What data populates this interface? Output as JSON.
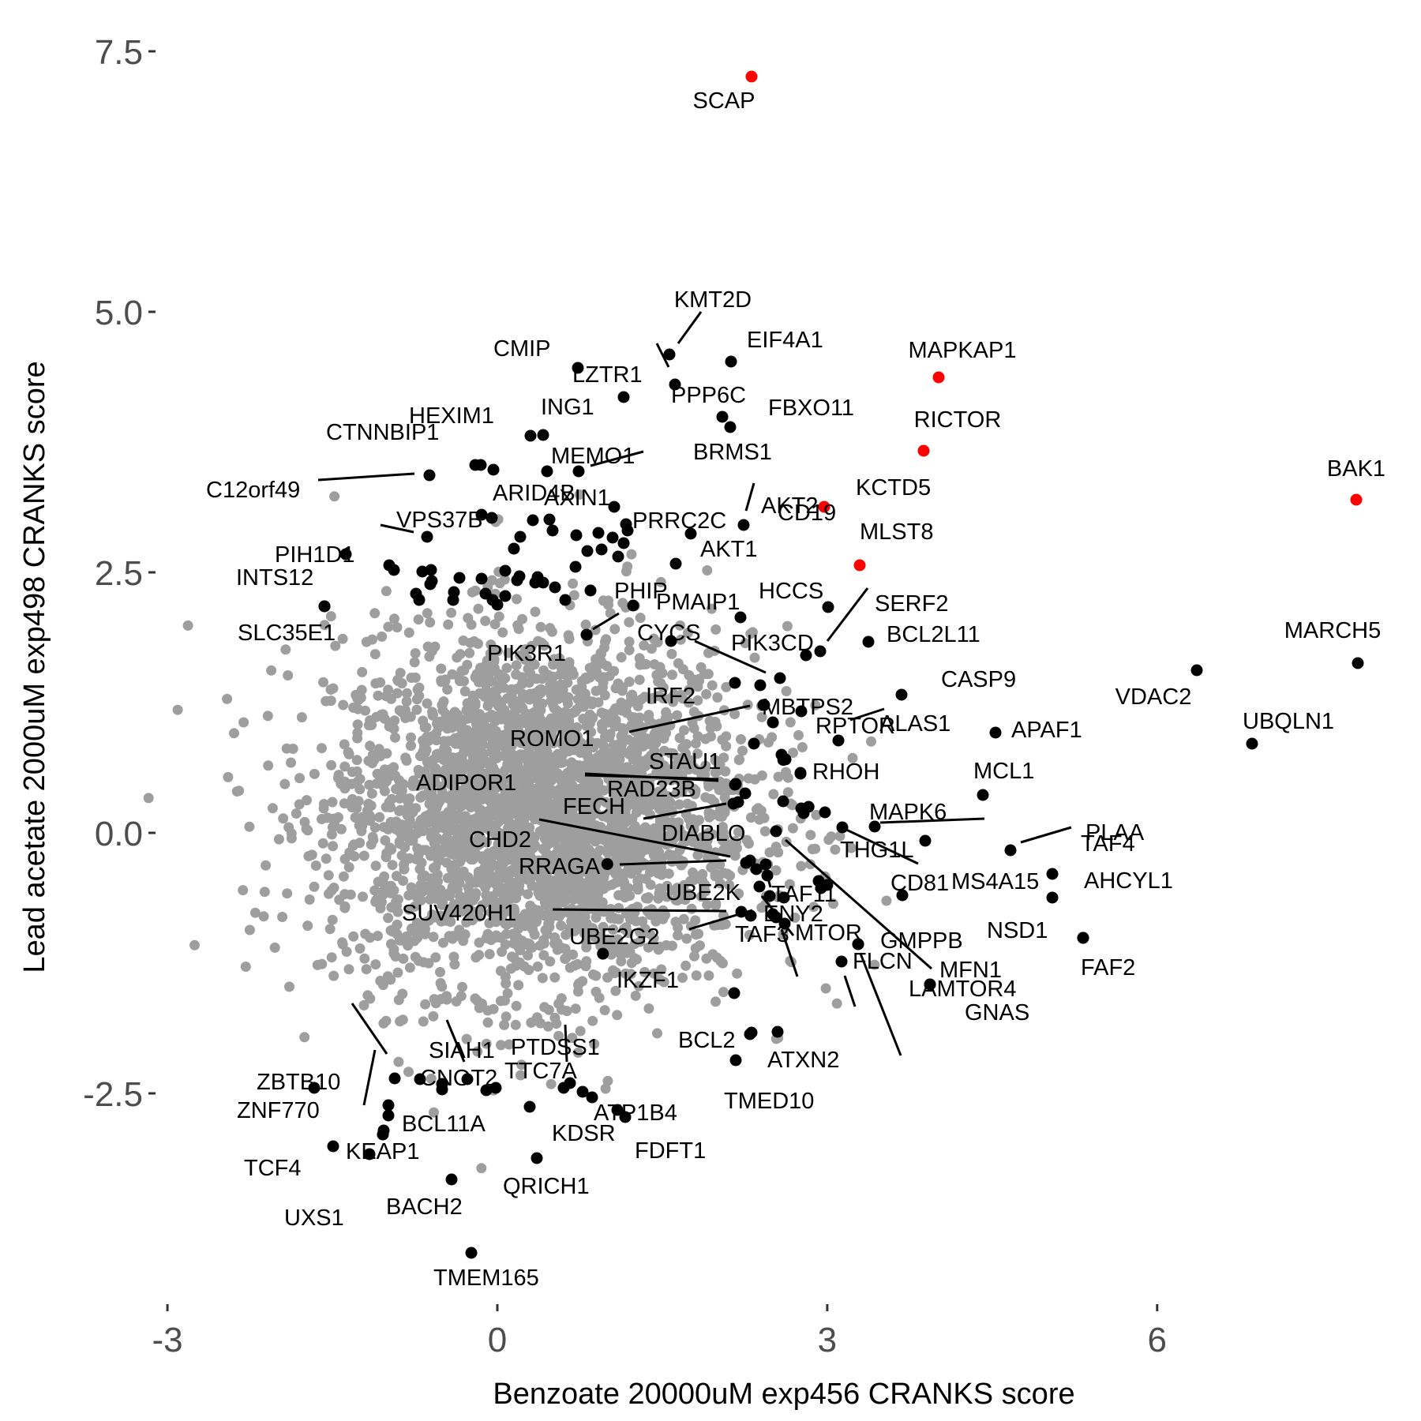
{
  "chart_data": {
    "type": "scatter",
    "title": "",
    "xlabel": "Benzoate 20000uM exp456 CRANKS score",
    "ylabel": "Lead acetate 2000uM exp498 CRANKS score",
    "xlim": [
      -3,
      8.2
    ],
    "ylim": [
      -4.5,
      7.75
    ],
    "x_ticks": [
      -3,
      0,
      3,
      6
    ],
    "x_tick_labels": [
      "-3",
      "0",
      "3",
      "6"
    ],
    "y_ticks": [
      -2.5,
      0.0,
      2.5,
      5.0,
      7.5
    ],
    "y_tick_labels": [
      "-2.5",
      "0.0",
      "2.5",
      "5.0",
      "7.5"
    ],
    "grid": false,
    "legend": "none",
    "colors": {
      "background_points": "#9e9e9e",
      "labeled_points": "#000000",
      "highlight_points": "#ff0000"
    },
    "background_cloud": {
      "description_center_x": 0.4,
      "description_center_y": 0.2,
      "count": 3200,
      "x_sd": 0.95,
      "y_sd": 0.85
    },
    "labeled_points": [
      {
        "gene": "SCAP",
        "x": 2.33,
        "y": 7.24,
        "color": "#ff0000"
      },
      {
        "gene": "KMT2D",
        "x": 1.6,
        "y": 4.54
      },
      {
        "gene": "EIF4A1",
        "x": 2.15,
        "y": 4.5
      },
      {
        "gene": "CMIP",
        "x": 0.74,
        "y": 4.43
      },
      {
        "gene": "LZTR1",
        "x": 1.55,
        "y": 4.28
      },
      {
        "gene": "MAPKAP1",
        "x": 4.05,
        "y": 4.34,
        "color": "#ff0000"
      },
      {
        "gene": "ING1",
        "x": 1.17,
        "y": 4.15
      },
      {
        "gene": "PPP6C",
        "x": 2.07,
        "y": 3.95
      },
      {
        "gene": "HEXIM1",
        "x": 0.43,
        "y": 3.8
      },
      {
        "gene": "FBXO11",
        "x": 2.15,
        "y": 3.85
      },
      {
        "gene": "RICTOR",
        "x": 3.9,
        "y": 3.64,
        "color": "#ff0000"
      },
      {
        "gene": "CTNNBIP1",
        "x": -0.16,
        "y": 3.5
      },
      {
        "gene": "MEMO1",
        "x": 0.45,
        "y": 3.47
      },
      {
        "gene": "BRMS1",
        "x": 0.76,
        "y": 3.46
      },
      {
        "gene": "C12orf49",
        "x": -0.62,
        "y": 3.42
      },
      {
        "gene": "BAK1",
        "x": 7.85,
        "y": 3.18,
        "color": "#ff0000"
      },
      {
        "gene": "AKT2",
        "x": 2.25,
        "y": 2.95
      },
      {
        "gene": "KCTD5",
        "x": 3.0,
        "y": 3.15,
        "color": "#ff0000"
      },
      {
        "gene": "ARID4B",
        "x": 0.32,
        "y": 3.0
      },
      {
        "gene": "AXIN1",
        "x": 1.07,
        "y": 3.13
      },
      {
        "gene": "PRRC2C",
        "x": 1.49,
        "y": 2.85
      },
      {
        "gene": "VPS37B",
        "x": -0.64,
        "y": 2.82
      },
      {
        "gene": "PIH1D1",
        "x": -1.38,
        "y": 2.65
      },
      {
        "gene": "CD19",
        "x": 1.64,
        "y": 2.68
      },
      {
        "gene": "AKT1",
        "x": 1.68,
        "y": 2.53
      },
      {
        "gene": "MLST8",
        "x": 3.3,
        "y": 2.55,
        "color": "#ff0000"
      },
      {
        "gene": "INTS12",
        "x": -1.58,
        "y": 2.17
      },
      {
        "gene": "HCCS",
        "x": 3.02,
        "y": 2.15
      },
      {
        "gene": "SERF2",
        "x": 2.95,
        "y": 1.73
      },
      {
        "gene": "PHIP",
        "x": 1.25,
        "y": 2.17
      },
      {
        "gene": "PMAIP1",
        "x": 2.25,
        "y": 2.04
      },
      {
        "gene": "BCL2L11",
        "x": 3.4,
        "y": 1.83
      },
      {
        "gene": "PIK3R1",
        "x": 0.85,
        "y": 1.95
      },
      {
        "gene": "SLC35E1",
        "x": -1.58,
        "y": 1.9
      },
      {
        "gene": "MARCH5",
        "x": 7.85,
        "y": 1.6
      },
      {
        "gene": "PIK3CD",
        "x": 2.75,
        "y": 1.7
      },
      {
        "gene": "CYCS",
        "x": 2.6,
        "y": 1.45
      },
      {
        "gene": "VDAC2",
        "x": 6.4,
        "y": 1.55
      },
      {
        "gene": "RPTOR",
        "x": 2.8,
        "y": 1.15
      },
      {
        "gene": "CASP9",
        "x": 3.7,
        "y": 1.33
      },
      {
        "gene": "IRF2",
        "x": 2.17,
        "y": 1.4
      },
      {
        "gene": "MBTPS2",
        "x": 2.45,
        "y": 1.22
      },
      {
        "gene": "ROMO1",
        "x": 2.43,
        "y": 1.23
      },
      {
        "gene": "STAU1",
        "x": 2.55,
        "y": 1.07
      },
      {
        "gene": "ALAS1",
        "x": 3.15,
        "y": 0.88
      },
      {
        "gene": "APAF1",
        "x": 4.55,
        "y": 0.95
      },
      {
        "gene": "UBQLN1",
        "x": 6.9,
        "y": 0.85
      },
      {
        "gene": "RHOH",
        "x": 2.78,
        "y": 0.57
      },
      {
        "gene": "MCL1",
        "x": 4.45,
        "y": 0.36
      },
      {
        "gene": "ADIPOR1",
        "x": 1.65,
        "y": 0.53
      },
      {
        "gene": "RAD23B",
        "x": 2.17,
        "y": 0.45
      },
      {
        "gene": "MAPK6",
        "x": 3.45,
        "y": 0.06
      },
      {
        "gene": "TAF4",
        "x": 3.9,
        "y": -0.08
      },
      {
        "gene": "PLAA",
        "x": 4.7,
        "y": -0.17
      },
      {
        "gene": "CHD2",
        "x": 2.25,
        "y": -0.28
      },
      {
        "gene": "FECH",
        "x": 2.13,
        "y": 0.24
      },
      {
        "gene": "DIABLO",
        "x": 2.55,
        "y": 0.02
      },
      {
        "gene": "THG1L",
        "x": 3.2,
        "y": 0.02
      },
      {
        "gene": "CD81",
        "x": 3.7,
        "y": -0.62
      },
      {
        "gene": "MS4A15",
        "x": 5.05,
        "y": -0.37
      },
      {
        "gene": "AHCYL1",
        "x": 5.05,
        "y": -0.63
      },
      {
        "gene": "RRAGA",
        "x": 2.33,
        "y": -0.3
      },
      {
        "gene": "UBE2K",
        "x": 2.4,
        "y": -0.3
      },
      {
        "gene": "ENY2",
        "x": 2.48,
        "y": -0.65
      },
      {
        "gene": "SUV420H1",
        "x": 2.2,
        "y": -0.77
      },
      {
        "gene": "UBE2G2",
        "x": 2.3,
        "y": -0.8
      },
      {
        "gene": "MTOR",
        "x": 2.63,
        "y": -0.86
      },
      {
        "gene": "GMPPB",
        "x": 3.3,
        "y": -1.07
      },
      {
        "gene": "NSD1",
        "x": 5.35,
        "y": -1.0
      },
      {
        "gene": "TAF3",
        "x": 2.5,
        "y": -0.55
      },
      {
        "gene": "MFN1",
        "x": 3.97,
        "y": -1.47
      },
      {
        "gene": "FAF2",
        "x": 5.35,
        "y": -1.0
      },
      {
        "gene": "IKZF1",
        "x": 2.17,
        "y": -1.53
      },
      {
        "gene": "TAF11",
        "x": 2.48,
        "y": -0.7
      },
      {
        "gene": "FLCN",
        "x": 3.15,
        "y": -1.23
      },
      {
        "gene": "GNAS",
        "x": 3.97,
        "y": -1.47
      },
      {
        "gene": "LAMTOR4",
        "x": 3.3,
        "y": -1.07
      },
      {
        "gene": "BCL2",
        "x": 2.4,
        "y": -1.93
      },
      {
        "gene": "ATXN2",
        "x": 2.65,
        "y": -1.9
      },
      {
        "gene": "TMED10",
        "x": 2.17,
        "y": -2.2
      },
      {
        "gene": "ZBTB10",
        "x": -0.92,
        "y": -2.35
      },
      {
        "gene": "SIAH1",
        "x": -0.28,
        "y": -2.4
      },
      {
        "gene": "PTDSS1",
        "x": 0.68,
        "y": -2.5
      },
      {
        "gene": "CNOT2",
        "x": -0.45,
        "y": -2.52
      },
      {
        "gene": "TTC7A",
        "x": 0.42,
        "y": -2.53
      },
      {
        "gene": "ATP1B4",
        "x": 0.88,
        "y": -2.62
      },
      {
        "gene": "ZNF770",
        "x": -1.67,
        "y": -2.5
      },
      {
        "gene": "BCL11A",
        "x": -0.95,
        "y": -2.75
      },
      {
        "gene": "KDSR",
        "x": 1.2,
        "y": -2.8
      },
      {
        "gene": "FDFT1",
        "x": 1.3,
        "y": -2.73
      },
      {
        "gene": "TCF4",
        "x": -1.7,
        "y": -3.02
      },
      {
        "gene": "KEAP1",
        "x": -1.08,
        "y": -2.92
      },
      {
        "gene": "QRICH1",
        "x": 0.35,
        "y": -3.14
      },
      {
        "gene": "UXS1",
        "x": -1.08,
        "y": -2.92
      },
      {
        "gene": "BACH2",
        "x": -0.45,
        "y": -3.4
      },
      {
        "gene": "TMEM165",
        "x": -0.25,
        "y": -4.06
      },
      {
        "gene": "",
        "x": 0.96,
        "y": -1.16
      },
      {
        "gene": "",
        "x": 1.0,
        "y": -0.3
      },
      {
        "gene": "",
        "x": 2.6,
        "y": 0.7
      },
      {
        "gene": "",
        "x": 2.83,
        "y": 0.25
      },
      {
        "gene": "",
        "x": 3.0,
        "y": -0.5
      }
    ]
  }
}
